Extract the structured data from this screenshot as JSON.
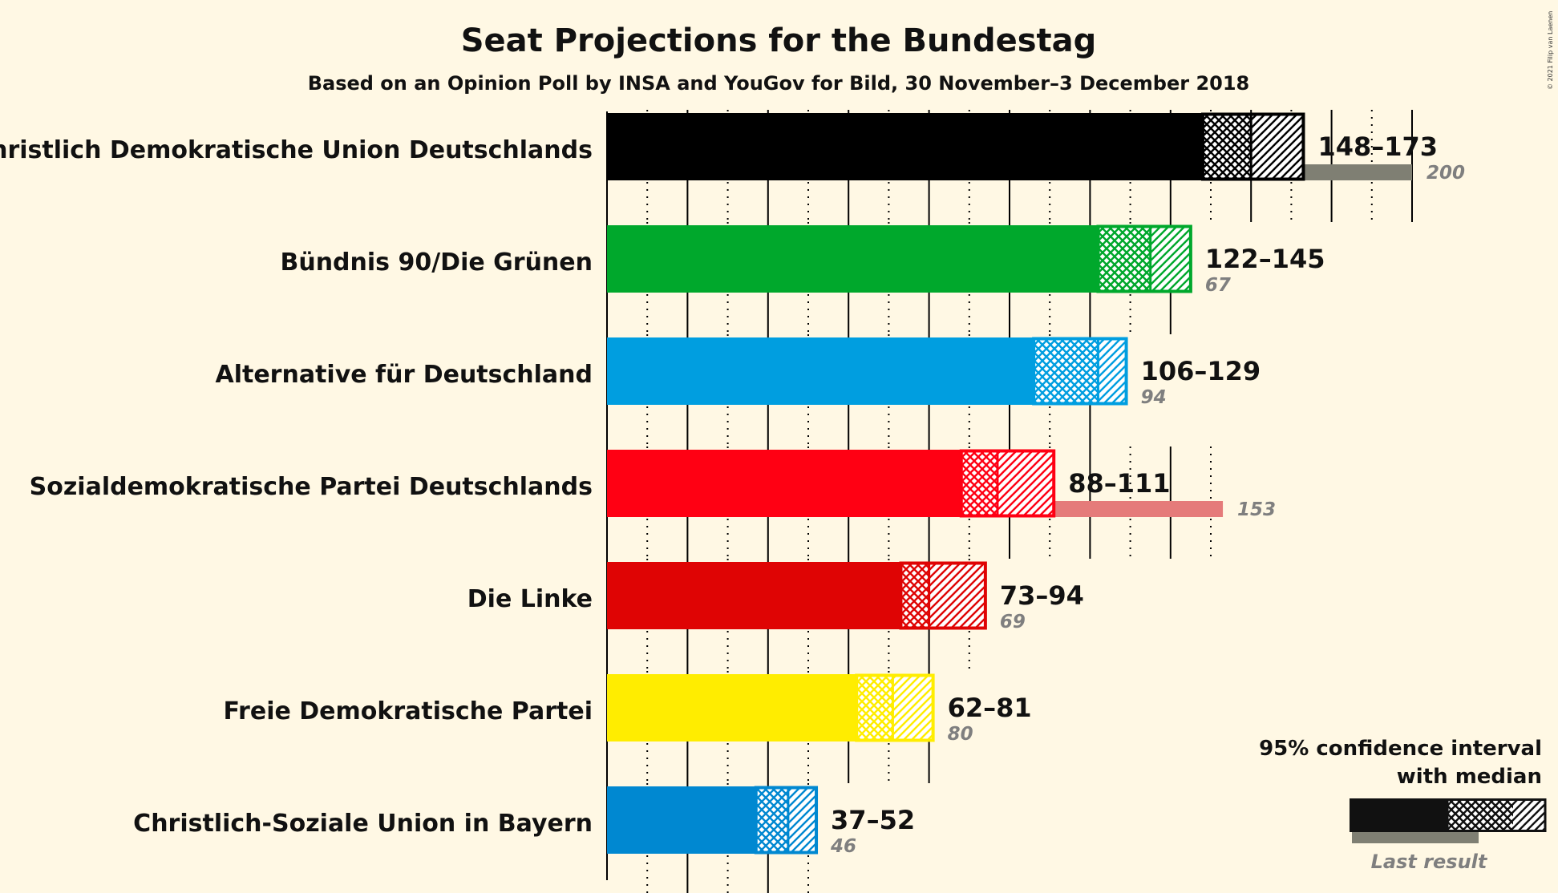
{
  "title": "Seat Projections for the Bundestag",
  "subtitle": "Based on an Opinion Poll by INSA and YouGov for Bild, 30 November–3 December 2018",
  "copyright": "© 2021 Filip van Laenen",
  "legend": {
    "title_line1": "95% confidence interval",
    "title_line2": "with median",
    "last_result": "Last result"
  },
  "chart_data": {
    "type": "bar",
    "orientation": "horizontal",
    "xlim": [
      0,
      200
    ],
    "grid": "vertical lines every 10 seats",
    "categories": [
      "Christlich Demokratische Union Deutschlands",
      "Bündnis 90/Die Grünen",
      "Alternative für Deutschland",
      "Sozialdemokratische Partei Deutschlands",
      "Die Linke",
      "Freie Demokratische Partei",
      "Christlich-Soziale Union in Bayern"
    ],
    "series": [
      {
        "name": "95% confidence interval",
        "ci_low": [
          148,
          122,
          106,
          88,
          73,
          62,
          37
        ],
        "median": [
          160,
          135,
          122,
          97,
          80,
          71,
          45
        ],
        "ci_high": [
          173,
          145,
          129,
          111,
          94,
          81,
          52
        ],
        "range_labels": [
          "148–173",
          "122–145",
          "106–129",
          "88–111",
          "73–94",
          "62–81",
          "37–52"
        ]
      },
      {
        "name": "Last result",
        "values": [
          200,
          67,
          94,
          153,
          69,
          80,
          46
        ],
        "value_labels": [
          "200",
          "67",
          "94",
          "153",
          "69",
          "80",
          "46"
        ]
      }
    ],
    "colors": [
      "#000000",
      "#00A82C",
      "#009EE0",
      "#FF0013",
      "#DF0404",
      "#FFED00",
      "#0088D1"
    ],
    "last_colors": [
      "#7F7F73",
      "#7FC27D",
      "#7FC4D6",
      "#E57B7A",
      "#E17D74",
      "#E6DE7E",
      "#7FB6CB"
    ]
  }
}
